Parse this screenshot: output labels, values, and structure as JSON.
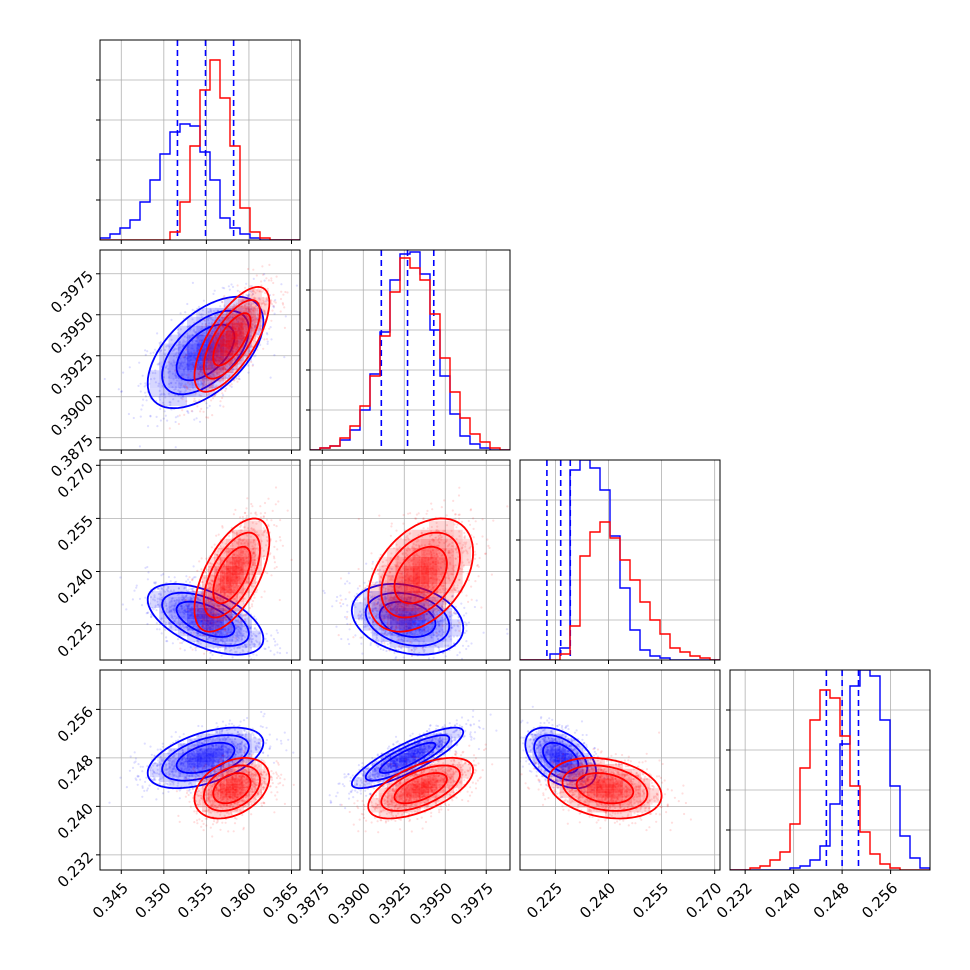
{
  "chart_data": {
    "type": "corner",
    "colors": {
      "blue": "#0000ff",
      "red": "#ff0000",
      "grid": "#b0b0b0",
      "frame": "#000000"
    },
    "params": [
      {
        "range": [
          0.3425,
          0.366
        ],
        "ticks": [
          "0.345",
          "0.350",
          "0.355",
          "0.360",
          "0.365"
        ]
      },
      {
        "range": [
          0.38675,
          0.39895
        ],
        "ticks": [
          "0.3875",
          "0.3900",
          "0.3925",
          "0.3950",
          "0.3975"
        ]
      },
      {
        "range": [
          0.215,
          0.2715
        ],
        "ticks": [
          "0.225",
          "0.240",
          "0.255",
          "0.270"
        ]
      },
      {
        "range": [
          0.2295,
          0.2625
        ],
        "ticks": [
          "0.232",
          "0.240",
          "0.248",
          "0.256"
        ]
      }
    ],
    "series": [
      {
        "color": "blue",
        "means": [
          0.3549,
          0.3927,
          0.2265,
          0.248
        ],
        "sds": [
          0.0034,
          0.0017,
          0.005,
          0.0025
        ],
        "correlations": {
          "1-0": 0.55,
          "2-0": -0.55,
          "2-1": -0.25,
          "3-0": 0.5,
          "3-1": 0.85,
          "3-2": -0.45
        },
        "quantile_lines": [
          [
            0.3516,
            0.3549,
            0.3582
          ],
          [
            0.3911,
            0.3927,
            0.3943
          ],
          [
            0.2226,
            0.2265,
            0.2292
          ],
          [
            0.2454,
            0.248,
            0.2507
          ]
        ],
        "histograms": [
          [
            0.01,
            0.03,
            0.06,
            0.1,
            0.19,
            0.3,
            0.43,
            0.54,
            0.58,
            0.57,
            0.44,
            0.3,
            0.11,
            0.06,
            0.03,
            0.01,
            0.0,
            0.0,
            0.0,
            0.0
          ],
          [
            0.0,
            0.01,
            0.02,
            0.05,
            0.1,
            0.2,
            0.38,
            0.59,
            0.85,
            0.98,
            0.99,
            0.88,
            0.6,
            0.37,
            0.18,
            0.07,
            0.03,
            0.01,
            0.0,
            0.0
          ],
          [
            0.0,
            0.0,
            0.0,
            0.03,
            0.06,
            0.95,
            1.0,
            0.96,
            0.85,
            0.62,
            0.36,
            0.15,
            0.05,
            0.02,
            0.01,
            0.0,
            0.0,
            0.0,
            0.0,
            0.0
          ],
          [
            0.0,
            0.0,
            0.0,
            0.0,
            0.0,
            0.0,
            0.01,
            0.02,
            0.05,
            0.12,
            0.33,
            0.63,
            0.92,
            1.0,
            0.97,
            0.75,
            0.42,
            0.17,
            0.06,
            0.01
          ]
        ]
      },
      {
        "color": "red",
        "means": [
          0.358,
          0.3935,
          0.239,
          0.243
        ],
        "sds": [
          0.0022,
          0.0016,
          0.008,
          0.0025
        ],
        "correlations": {
          "1-0": 0.7,
          "2-0": 0.6,
          "2-1": 0.4,
          "3-0": 0.35,
          "3-1": 0.6,
          "3-2": -0.25
        },
        "histograms": [
          [
            0.0,
            0.0,
            0.0,
            0.0,
            0.0,
            0.0,
            0.0,
            0.04,
            0.19,
            0.47,
            0.75,
            0.9,
            0.71,
            0.47,
            0.16,
            0.04,
            0.01,
            0.0,
            0.0,
            0.0
          ],
          [
            0.0,
            0.01,
            0.02,
            0.06,
            0.12,
            0.22,
            0.37,
            0.57,
            0.79,
            0.96,
            0.91,
            0.85,
            0.68,
            0.46,
            0.29,
            0.16,
            0.08,
            0.04,
            0.01,
            0.0
          ],
          [
            0.0,
            0.0,
            0.0,
            0.0,
            0.03,
            0.17,
            0.52,
            0.64,
            0.69,
            0.61,
            0.5,
            0.4,
            0.29,
            0.2,
            0.13,
            0.06,
            0.04,
            0.02,
            0.01,
            0.0
          ],
          [
            0.0,
            0.0,
            0.01,
            0.02,
            0.05,
            0.09,
            0.23,
            0.51,
            0.75,
            0.9,
            0.86,
            0.67,
            0.42,
            0.19,
            0.08,
            0.03,
            0.01,
            0.0,
            0.0,
            0.0
          ]
        ]
      }
    ],
    "xlabel": "",
    "ylabel": "",
    "grid": true
  }
}
